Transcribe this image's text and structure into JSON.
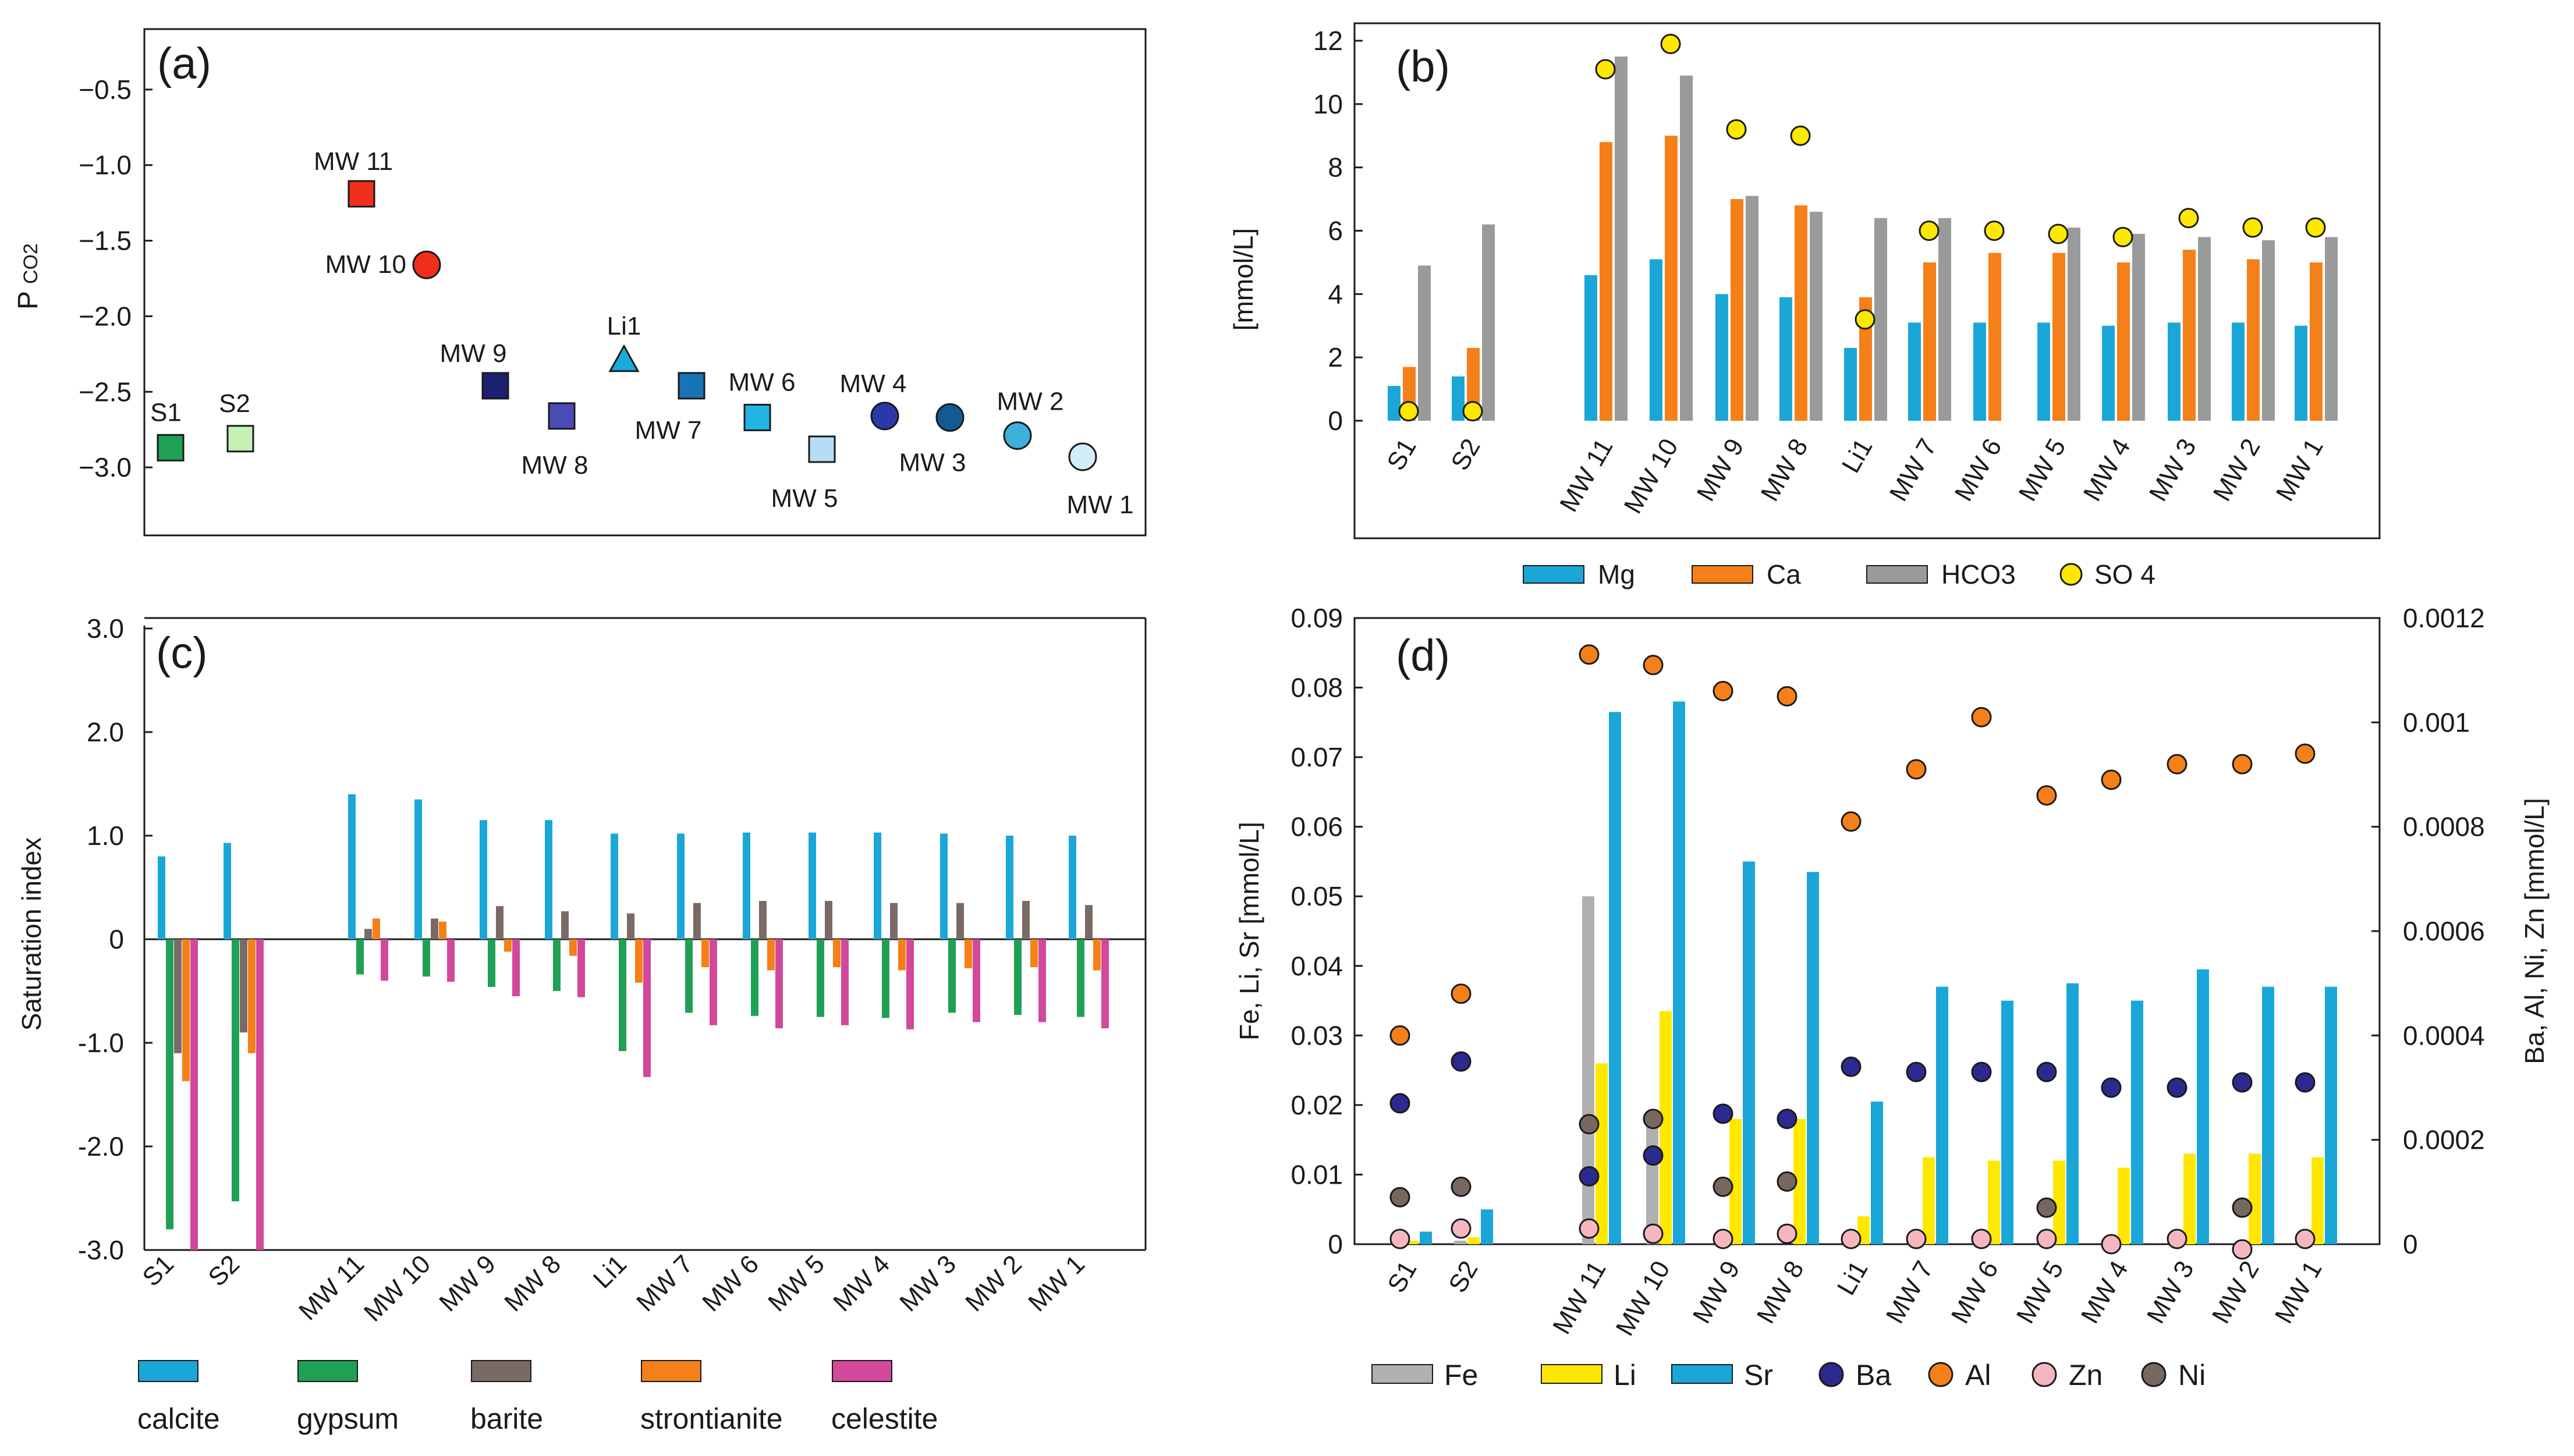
{
  "chart_data": [
    {
      "id": "a",
      "type": "scatter",
      "panel_label": "(a)",
      "ylabel_main": "P",
      "ylabel_sub": "CO2",
      "ylim": [
        -3.45,
        -0.1
      ],
      "yticks": [
        -0.5,
        -1.0,
        -1.5,
        -2.0,
        -2.5,
        -3.0
      ],
      "ytick_labels": [
        "−0.5",
        "−1.0",
        "−1.5",
        "−2.0",
        "−2.5",
        "−3.0"
      ],
      "points": [
        {
          "label": "S1",
          "y": -2.87,
          "marker": "square",
          "color": "#1fa055"
        },
        {
          "label": "S2",
          "y": -2.81,
          "marker": "square",
          "color": "#c6f0b4"
        },
        {
          "label": "MW 11",
          "y": -1.19,
          "marker": "square",
          "color": "#ef2f1c"
        },
        {
          "label": "MW 10",
          "y": -1.66,
          "marker": "circle",
          "color": "#ef2f1c"
        },
        {
          "label": "MW 9",
          "y": -2.46,
          "marker": "square",
          "color": "#1c2170"
        },
        {
          "label": "MW 8",
          "y": -2.66,
          "marker": "square",
          "color": "#4a4bb6"
        },
        {
          "label": "Li1",
          "y": -2.28,
          "marker": "triangle",
          "color": "#1ba9d8"
        },
        {
          "label": "MW 7",
          "y": -2.46,
          "marker": "square",
          "color": "#1873b7"
        },
        {
          "label": "MW 6",
          "y": -2.67,
          "marker": "square",
          "color": "#22b5e3"
        },
        {
          "label": "MW 5",
          "y": -2.88,
          "marker": "square",
          "color": "#b6ddf3"
        },
        {
          "label": "MW 4",
          "y": -2.66,
          "marker": "circle",
          "color": "#2c38a5"
        },
        {
          "label": "MW 3",
          "y": -2.67,
          "marker": "circle",
          "color": "#125a94"
        },
        {
          "label": "MW 2",
          "y": -2.79,
          "marker": "circle",
          "color": "#3db1dc"
        },
        {
          "label": "MW 1",
          "y": -2.93,
          "marker": "circle",
          "color": "#d2eefb"
        }
      ]
    },
    {
      "id": "b",
      "type": "bar",
      "panel_label": "(b)",
      "ylabel": "[mmol/L]",
      "ylim": [
        -3.5,
        12.4
      ],
      "yticks": [
        0,
        2,
        4,
        6,
        8,
        10,
        12
      ],
      "categories": [
        "S1",
        "S2",
        "MW 11",
        "MW 10",
        "MW 9",
        "MW 8",
        "Li1",
        "MW 7",
        "MW 6",
        "MW 5",
        "MW 4",
        "MW 3",
        "MW 2",
        "MW 1"
      ],
      "series": [
        {
          "name": "Mg",
          "color": "#1aa7d8",
          "values": [
            1.1,
            1.4,
            4.6,
            5.1,
            4.0,
            3.9,
            2.3,
            3.1,
            3.1,
            3.1,
            3.0,
            3.1,
            3.1,
            3.0
          ]
        },
        {
          "name": "Ca",
          "color": "#f57f18",
          "values": [
            1.7,
            2.3,
            8.8,
            9.0,
            7.0,
            6.8,
            3.9,
            5.0,
            5.3,
            5.3,
            5.0,
            5.4,
            5.1,
            5.0
          ]
        },
        {
          "name": "HCO3",
          "color": "#9a9a9a",
          "values": [
            4.9,
            6.2,
            11.5,
            10.9,
            7.1,
            6.6,
            6.4,
            6.4,
            null,
            6.1,
            5.9,
            5.8,
            5.7,
            5.8
          ]
        }
      ],
      "points": {
        "name": "SO 4",
        "color": "#ffe800",
        "values": [
          0.3,
          0.3,
          11.1,
          11.9,
          9.2,
          9.0,
          3.2,
          6.0,
          6.0,
          5.9,
          5.8,
          6.4,
          6.1,
          6.1
        ]
      },
      "legend": [
        {
          "label": "Mg",
          "kind": "bar",
          "color": "#1aa7d8"
        },
        {
          "label": "Ca",
          "kind": "bar",
          "color": "#f57f18"
        },
        {
          "label": "HCO3",
          "kind": "bar",
          "color": "#9a9a9a"
        },
        {
          "label": "SO 4",
          "kind": "dot",
          "color": "#ffe800"
        }
      ]
    },
    {
      "id": "c",
      "type": "bar",
      "panel_label": "(c)",
      "ylabel": "Saturation index",
      "ylim": [
        -3.0,
        3.0
      ],
      "yticks": [
        3.0,
        2.0,
        1.0,
        0,
        -1.0,
        -2.0,
        -3.0
      ],
      "ytick_labels": [
        "3.0",
        "2.0",
        "1.0",
        "0",
        "-1.0",
        "-2.0",
        "-3.0"
      ],
      "categories": [
        "S1",
        "S2",
        "MW 11",
        "MW 10",
        "MW 9",
        "MW 8",
        "Li1",
        "MW 7",
        "MW 6",
        "MW 5",
        "MW 4",
        "MW 3",
        "MW 2",
        "MW 1"
      ],
      "series": [
        {
          "name": "calcite",
          "color": "#1aa7d8",
          "values": [
            0.8,
            0.93,
            1.4,
            1.35,
            1.15,
            1.15,
            1.02,
            1.02,
            1.03,
            1.03,
            1.03,
            1.02,
            1.0,
            1.0
          ]
        },
        {
          "name": "gypsum",
          "color": "#1fa055",
          "values": [
            -2.8,
            -2.53,
            -0.34,
            -0.36,
            -0.46,
            -0.5,
            -1.08,
            -0.71,
            -0.74,
            -0.75,
            -0.76,
            -0.71,
            -0.73,
            -0.75
          ]
        },
        {
          "name": "barite",
          "color": "#7a6a66",
          "values": [
            -1.1,
            -0.9,
            0.1,
            0.2,
            0.32,
            0.27,
            0.25,
            0.35,
            0.37,
            0.37,
            0.35,
            0.35,
            0.37,
            0.33
          ]
        },
        {
          "name": "strontianite",
          "color": "#f57f18",
          "values": [
            -1.37,
            -1.1,
            0.2,
            0.17,
            -0.12,
            -0.16,
            -0.42,
            -0.27,
            -0.3,
            -0.27,
            -0.3,
            -0.28,
            -0.27,
            -0.3
          ]
        },
        {
          "name": "celestite",
          "color": "#d2489b",
          "values": [
            -3.0,
            -3.0,
            -0.4,
            -0.41,
            -0.55,
            -0.56,
            -1.33,
            -0.83,
            -0.86,
            -0.83,
            -0.87,
            -0.8,
            -0.8,
            -0.86
          ]
        }
      ]
    },
    {
      "id": "d",
      "type": "bar",
      "panel_label": "(d)",
      "ylabel_left": "Fe, Li, Sr [mmol/L]",
      "ylabel_right": "Ba, Al, Ni, Zn [mmol/L]",
      "ylim_left": [
        0,
        0.09
      ],
      "yticks_left": [
        0,
        0.01,
        0.02,
        0.03,
        0.04,
        0.05,
        0.06,
        0.07,
        0.08,
        0.09
      ],
      "ylim_right": [
        0,
        0.0012
      ],
      "yticks_right": [
        0,
        0.0002,
        0.0004,
        0.0006,
        0.0008,
        0.001,
        0.0012
      ],
      "categories": [
        "S1",
        "S2",
        "MW 11",
        "MW 10",
        "MW 9",
        "MW 8",
        "Li1",
        "MW 7",
        "MW 6",
        "MW 5",
        "MW 4",
        "MW 3",
        "MW 2",
        "MW 1"
      ],
      "series": [
        {
          "name": "Fe",
          "color": "#b0b0b0",
          "axis": "left",
          "values": [
            0.0005,
            0.0005,
            0.05,
            0.017,
            null,
            null,
            null,
            null,
            null,
            null,
            null,
            null,
            null,
            null
          ]
        },
        {
          "name": "Li",
          "color": "#ffe800",
          "axis": "left",
          "values": [
            0.0005,
            0.001,
            0.026,
            0.0335,
            0.018,
            0.018,
            0.004,
            0.0125,
            0.012,
            0.012,
            0.011,
            0.013,
            0.013,
            0.0125
          ]
        },
        {
          "name": "Sr",
          "color": "#1aa7d8",
          "axis": "left",
          "values": [
            0.0018,
            0.005,
            0.0765,
            0.078,
            0.055,
            0.0535,
            0.0205,
            0.037,
            0.035,
            0.0375,
            0.035,
            0.0395,
            0.037,
            0.037
          ]
        }
      ],
      "point_series": [
        {
          "name": "Ba",
          "color": "#2c2a8f",
          "axis": "right",
          "values": [
            0.00027,
            0.00035,
            0.00013,
            0.00017,
            0.00025,
            0.00024,
            0.00034,
            0.00033,
            0.00033,
            0.00033,
            0.0003,
            0.0003,
            0.00031,
            0.00031
          ]
        },
        {
          "name": "Al",
          "color": "#f57f18",
          "axis": "right",
          "values": [
            0.0004,
            0.00048,
            0.00113,
            0.00111,
            0.00106,
            0.00105,
            0.00081,
            0.00091,
            0.00101,
            0.00086,
            0.00089,
            0.00092,
            0.00092,
            0.00094
          ]
        },
        {
          "name": "Zn",
          "color": "#f6b6c0",
          "axis": "right",
          "values": [
            1e-05,
            3e-05,
            3e-05,
            2e-05,
            1e-05,
            2e-05,
            1e-05,
            1e-05,
            1e-05,
            1e-05,
            0.0,
            1e-05,
            -1e-05,
            1e-05
          ]
        },
        {
          "name": "Ni",
          "color": "#77685f",
          "axis": "right",
          "values": [
            9e-05,
            0.00011,
            0.00023,
            0.00024,
            0.00011,
            0.00012,
            null,
            null,
            null,
            7e-05,
            null,
            null,
            7e-05,
            null
          ]
        }
      ],
      "legend": [
        {
          "label": "Fe",
          "kind": "bar",
          "color": "#b0b0b0"
        },
        {
          "label": "Li",
          "kind": "bar",
          "color": "#ffe800"
        },
        {
          "label": "Sr",
          "kind": "bar",
          "color": "#1aa7d8"
        },
        {
          "label": "Ba",
          "kind": "dot",
          "color": "#2c2a8f"
        },
        {
          "label": "Al",
          "kind": "dot",
          "color": "#f57f18"
        },
        {
          "label": "Zn",
          "kind": "dot",
          "color": "#f6b6c0"
        },
        {
          "label": "Ni",
          "kind": "dot",
          "color": "#77685f"
        }
      ]
    }
  ]
}
